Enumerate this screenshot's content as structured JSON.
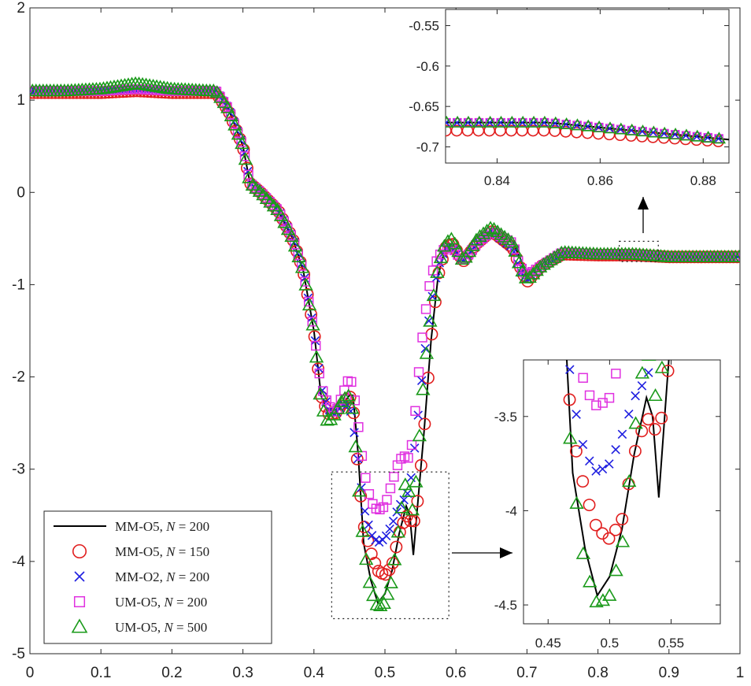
{
  "chart_data": {
    "type": "scatter",
    "title": "",
    "xlabel": "",
    "ylabel": "",
    "main": {
      "xlim": [
        0,
        1
      ],
      "ylim": [
        -5,
        2
      ],
      "xticks": [
        0,
        0.1,
        0.2,
        0.3,
        0.4,
        0.5,
        0.6,
        0.7,
        0.8,
        0.9,
        1
      ],
      "xtick_labels": [
        "0",
        "0.1",
        "0.2",
        "0.3",
        "0.4",
        "0.5",
        "0.6",
        "0.7",
        "0.8",
        "0.9",
        "1"
      ],
      "yticks": [
        2,
        1,
        0,
        -1,
        -2,
        -3,
        -4,
        -5
      ],
      "ytick_labels": [
        "2",
        "1",
        "0",
        "-1",
        "-2",
        "-3",
        "-4",
        "-5"
      ]
    },
    "inset_top": {
      "xlim": [
        0.83,
        0.885
      ],
      "ylim": [
        -0.72,
        -0.53
      ],
      "xticks": [
        0.84,
        0.86,
        0.88
      ],
      "xtick_labels": [
        "0.84",
        "0.86",
        "0.88"
      ],
      "yticks": [
        -0.55,
        -0.6,
        -0.65,
        -0.7
      ],
      "ytick_labels": [
        "-0.55",
        "-0.6",
        "-0.65",
        "-0.7"
      ]
    },
    "inset_bottom": {
      "xlim": [
        0.43,
        0.59
      ],
      "ylim": [
        -4.6,
        -3.2
      ],
      "xticks": [
        0.45,
        0.5,
        0.55
      ],
      "xtick_labels": [
        "0.45",
        "0.5",
        "0.55"
      ],
      "yticks": [
        -3.5,
        -4,
        -4.5
      ],
      "ytick_labels": [
        "-3.5",
        "-4",
        "-4.5"
      ]
    },
    "zoom_boxes": [
      {
        "x": [
          0.425,
          0.59
        ],
        "y": [
          -4.62,
          -3.03
        ]
      },
      {
        "x": [
          0.83,
          0.885
        ],
        "y": [
          -0.75,
          -0.53
        ]
      }
    ],
    "series": [
      {
        "name": "MM-O5",
        "N": "200",
        "marker": "line",
        "color": "#000000",
        "x": [
          0,
          0.05,
          0.1,
          0.15,
          0.2,
          0.25,
          0.262,
          0.28,
          0.3,
          0.31,
          0.325,
          0.35,
          0.37,
          0.385,
          0.4,
          0.41,
          0.42,
          0.43,
          0.44,
          0.45,
          0.455,
          0.462,
          0.47,
          0.48,
          0.49,
          0.5,
          0.51,
          0.52,
          0.53,
          0.535,
          0.54,
          0.547,
          0.555,
          0.565,
          0.575,
          0.585,
          0.595,
          0.61,
          0.63,
          0.65,
          0.68,
          0.69,
          0.7,
          0.72,
          0.75,
          0.8,
          0.85,
          0.9,
          1
        ],
        "y": [
          1.1,
          1.1,
          1.1,
          1.12,
          1.1,
          1.1,
          1.1,
          0.9,
          0.5,
          0.1,
          0.0,
          -0.2,
          -0.5,
          -0.85,
          -1.5,
          -2.2,
          -2.4,
          -2.4,
          -2.3,
          -2.2,
          -2.2,
          -2.8,
          -3.8,
          -4.2,
          -4.45,
          -4.35,
          -4.1,
          -3.7,
          -3.4,
          -3.5,
          -3.93,
          -3.3,
          -2.6,
          -1.6,
          -0.9,
          -0.6,
          -0.55,
          -0.75,
          -0.55,
          -0.42,
          -0.55,
          -0.7,
          -0.95,
          -0.8,
          -0.65,
          -0.67,
          -0.67,
          -0.7,
          -0.7
        ]
      },
      {
        "name": "MM-O5",
        "N": "150",
        "marker": "circle",
        "color": "#e11e1e",
        "x": [
          0,
          0.05,
          0.1,
          0.15,
          0.2,
          0.25,
          0.262,
          0.28,
          0.3,
          0.31,
          0.325,
          0.35,
          0.37,
          0.385,
          0.4,
          0.41,
          0.42,
          0.43,
          0.44,
          0.45,
          0.455,
          0.462,
          0.47,
          0.48,
          0.49,
          0.5,
          0.51,
          0.52,
          0.53,
          0.535,
          0.54,
          0.547,
          0.555,
          0.565,
          0.575,
          0.585,
          0.595,
          0.61,
          0.63,
          0.65,
          0.68,
          0.69,
          0.7,
          0.72,
          0.75,
          0.8,
          0.85,
          0.9,
          1
        ],
        "y": [
          1.08,
          1.08,
          1.08,
          1.1,
          1.08,
          1.08,
          1.08,
          0.88,
          0.5,
          0.1,
          0.0,
          -0.2,
          -0.5,
          -0.85,
          -1.5,
          -2.2,
          -2.4,
          -2.4,
          -2.3,
          -2.2,
          -2.3,
          -3.0,
          -3.6,
          -3.9,
          -4.1,
          -4.15,
          -4.05,
          -3.7,
          -3.5,
          -3.55,
          -3.6,
          -3.3,
          -2.6,
          -1.6,
          -0.9,
          -0.6,
          -0.55,
          -0.75,
          -0.55,
          -0.42,
          -0.6,
          -0.8,
          -0.97,
          -0.8,
          -0.67,
          -0.68,
          -0.68,
          -0.7,
          -0.7
        ]
      },
      {
        "name": "MM-O2",
        "N": "200",
        "marker": "x",
        "color": "#1f1fe0",
        "x": [
          0,
          0.05,
          0.1,
          0.15,
          0.2,
          0.25,
          0.262,
          0.28,
          0.3,
          0.31,
          0.325,
          0.35,
          0.37,
          0.385,
          0.4,
          0.41,
          0.42,
          0.43,
          0.44,
          0.45,
          0.455,
          0.462,
          0.47,
          0.48,
          0.49,
          0.5,
          0.51,
          0.52,
          0.53,
          0.535,
          0.54,
          0.547,
          0.555,
          0.565,
          0.575,
          0.585,
          0.595,
          0.61,
          0.63,
          0.65,
          0.68,
          0.69,
          0.7,
          0.72,
          0.75,
          0.8,
          0.85,
          0.9,
          1
        ],
        "y": [
          1.1,
          1.1,
          1.1,
          1.12,
          1.1,
          1.1,
          1.1,
          0.9,
          0.5,
          0.1,
          0.0,
          -0.2,
          -0.5,
          -0.85,
          -1.5,
          -2.1,
          -2.35,
          -2.4,
          -2.3,
          -2.3,
          -2.5,
          -2.9,
          -3.4,
          -3.7,
          -3.8,
          -3.75,
          -3.6,
          -3.4,
          -3.3,
          -3.2,
          -2.9,
          -2.4,
          -1.8,
          -1.2,
          -0.8,
          -0.6,
          -0.6,
          -0.75,
          -0.55,
          -0.42,
          -0.6,
          -0.85,
          -0.95,
          -0.8,
          -0.67,
          -0.67,
          -0.67,
          -0.7,
          -0.7
        ]
      },
      {
        "name": "UM-O5",
        "N": "200",
        "marker": "square",
        "color": "#e030e0",
        "x": [
          0,
          0.05,
          0.1,
          0.15,
          0.2,
          0.25,
          0.262,
          0.28,
          0.3,
          0.31,
          0.325,
          0.35,
          0.37,
          0.385,
          0.4,
          0.41,
          0.42,
          0.43,
          0.44,
          0.45,
          0.455,
          0.462,
          0.47,
          0.48,
          0.49,
          0.5,
          0.51,
          0.52,
          0.53,
          0.535,
          0.54,
          0.547,
          0.555,
          0.565,
          0.575,
          0.585,
          0.595,
          0.61,
          0.63,
          0.65,
          0.68,
          0.69,
          0.7,
          0.72,
          0.75,
          0.8,
          0.85,
          0.9,
          1
        ],
        "y": [
          1.1,
          1.1,
          1.1,
          1.12,
          1.1,
          1.1,
          1.1,
          0.9,
          0.5,
          0.1,
          0.0,
          -0.2,
          -0.5,
          -0.85,
          -1.5,
          -2.1,
          -2.3,
          -2.4,
          -2.2,
          -2.0,
          -2.1,
          -2.5,
          -3.0,
          -3.35,
          -3.45,
          -3.4,
          -3.15,
          -2.9,
          -2.85,
          -2.9,
          -2.6,
          -2.0,
          -1.4,
          -0.9,
          -0.7,
          -0.6,
          -0.6,
          -0.75,
          -0.55,
          -0.42,
          -0.55,
          -0.8,
          -0.9,
          -0.8,
          -0.65,
          -0.67,
          -0.67,
          -0.7,
          -0.7
        ]
      },
      {
        "name": "UM-O5",
        "N": "500",
        "marker": "triangle",
        "color": "#1a9a1a",
        "x": [
          0,
          0.05,
          0.1,
          0.15,
          0.2,
          0.25,
          0.262,
          0.28,
          0.3,
          0.31,
          0.325,
          0.35,
          0.37,
          0.385,
          0.4,
          0.41,
          0.42,
          0.43,
          0.44,
          0.45,
          0.455,
          0.462,
          0.47,
          0.48,
          0.49,
          0.5,
          0.51,
          0.52,
          0.53,
          0.535,
          0.54,
          0.547,
          0.555,
          0.565,
          0.575,
          0.585,
          0.595,
          0.61,
          0.63,
          0.65,
          0.68,
          0.69,
          0.7,
          0.72,
          0.75,
          0.8,
          0.85,
          0.9,
          1
        ],
        "y": [
          1.1,
          1.1,
          1.12,
          1.18,
          1.12,
          1.1,
          1.1,
          0.9,
          0.5,
          0.1,
          0.0,
          -0.2,
          -0.5,
          -0.85,
          -1.5,
          -2.3,
          -2.5,
          -2.4,
          -2.25,
          -2.2,
          -2.4,
          -3.1,
          -3.8,
          -4.3,
          -4.5,
          -4.45,
          -4.2,
          -3.6,
          -3.1,
          -3.3,
          -3.5,
          -2.8,
          -2.0,
          -1.3,
          -0.8,
          -0.55,
          -0.5,
          -0.75,
          -0.5,
          -0.38,
          -0.55,
          -0.8,
          -0.95,
          -0.8,
          -0.65,
          -0.67,
          -0.67,
          -0.7,
          -0.7
        ]
      }
    ],
    "legend": {
      "placement": "bottom-left",
      "entries": [
        {
          "label": "MM-O5, ",
          "var": "N",
          "eq": " = 200"
        },
        {
          "label": "MM-O5, ",
          "var": "N",
          "eq": " = 150"
        },
        {
          "label": "MM-O2, ",
          "var": "N",
          "eq": " = 200"
        },
        {
          "label": "UM-O5, ",
          "var": "N",
          "eq": " = 200"
        },
        {
          "label": "UM-O5, ",
          "var": "N",
          "eq": " = 500"
        }
      ]
    }
  }
}
